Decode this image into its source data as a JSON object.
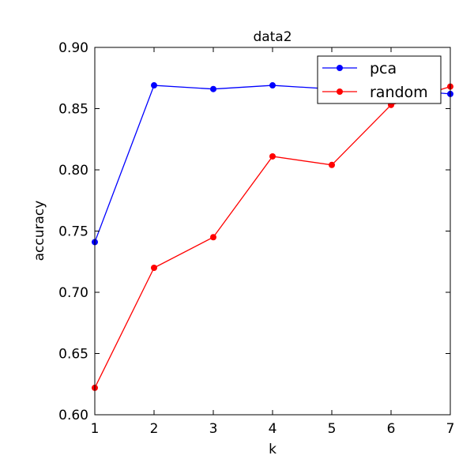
{
  "chart_data": {
    "type": "line",
    "title": "data2",
    "xlabel": "k",
    "ylabel": "accuracy",
    "x": [
      1,
      2,
      3,
      4,
      5,
      6,
      7
    ],
    "xlim": [
      1,
      7
    ],
    "ylim": [
      0.6,
      0.9
    ],
    "xticks": [
      "1",
      "2",
      "3",
      "4",
      "5",
      "6",
      "7"
    ],
    "yticks": [
      "0.60",
      "0.65",
      "0.70",
      "0.75",
      "0.80",
      "0.85",
      "0.90"
    ],
    "grid": false,
    "legend_position": "top-right",
    "series": [
      {
        "name": "pca",
        "color": "#0000ff",
        "values": [
          0.741,
          0.869,
          0.866,
          0.869,
          0.866,
          0.866,
          0.862
        ]
      },
      {
        "name": "random",
        "color": "#ff0000",
        "values": [
          0.622,
          0.72,
          0.745,
          0.811,
          0.804,
          0.853,
          0.868
        ]
      }
    ]
  }
}
